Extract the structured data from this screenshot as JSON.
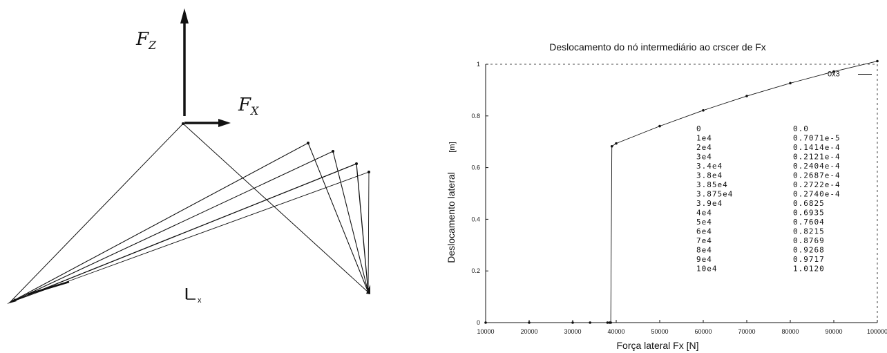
{
  "diagram": {
    "fz_label": "F",
    "fz_sub": "Z",
    "fx_label": "F",
    "fx_sub": "X",
    "axis_label": "x"
  },
  "chart_data": {
    "type": "line",
    "title": "Deslocamento do nó intermediário ao crscer de Fx",
    "xlabel": "Força lateral Fx [N]",
    "ylabel": "Deslocamento lateral",
    "ylabel_unit": "[m]",
    "xlim": [
      10000,
      100000
    ],
    "ylim": [
      0,
      1
    ],
    "xticks": [
      "10000",
      "20000",
      "30000",
      "40000",
      "50000",
      "60000",
      "70000",
      "80000",
      "90000",
      "100000"
    ],
    "yticks": [
      "0",
      "0.2",
      "0.4",
      "0.6",
      "0.8",
      "1"
    ],
    "grid": false,
    "points": [
      {
        "x": 10000,
        "y": 0.0
      },
      {
        "x": 20000,
        "y": 0.0
      },
      {
        "x": 30000,
        "y": 0.0
      },
      {
        "x": 34000,
        "y": 0.0
      },
      {
        "x": 38000,
        "y": 0.0
      },
      {
        "x": 38500,
        "y": 0.0
      },
      {
        "x": 38750,
        "y": 0.0
      },
      {
        "x": 39000,
        "y": 0.6825
      },
      {
        "x": 40000,
        "y": 0.6935
      },
      {
        "x": 50000,
        "y": 0.7604
      },
      {
        "x": 60000,
        "y": 0.8215
      },
      {
        "x": 70000,
        "y": 0.8769
      },
      {
        "x": 80000,
        "y": 0.9268
      },
      {
        "x": 90000,
        "y": 0.9717
      },
      {
        "x": 100000,
        "y": 1.012
      }
    ],
    "annotation": "0x3",
    "table_rows": [
      {
        "force": "0",
        "disp": "0.0"
      },
      {
        "force": "1e4",
        "disp": "0.7071e-5"
      },
      {
        "force": "2e4",
        "disp": "0.1414e-4"
      },
      {
        "force": "3e4",
        "disp": "0.2121e-4"
      },
      {
        "force": "3.4e4",
        "disp": "0.2404e-4"
      },
      {
        "force": "3.8e4",
        "disp": "0.2687e-4"
      },
      {
        "force": "3.85e4",
        "disp": "0.2722e-4"
      },
      {
        "force": "3.875e4",
        "disp": "0.2740e-4"
      },
      {
        "force": "3.9e4",
        "disp": "0.6825"
      },
      {
        "force": "4e4",
        "disp": "0.6935"
      },
      {
        "force": "5e4",
        "disp": "0.7604"
      },
      {
        "force": "6e4",
        "disp": "0.8215"
      },
      {
        "force": "7e4",
        "disp": "0.8769"
      },
      {
        "force": "8e4",
        "disp": "0.9268"
      },
      {
        "force": "9e4",
        "disp": "0.9717"
      },
      {
        "force": "10e4",
        "disp": "1.0120"
      }
    ]
  }
}
